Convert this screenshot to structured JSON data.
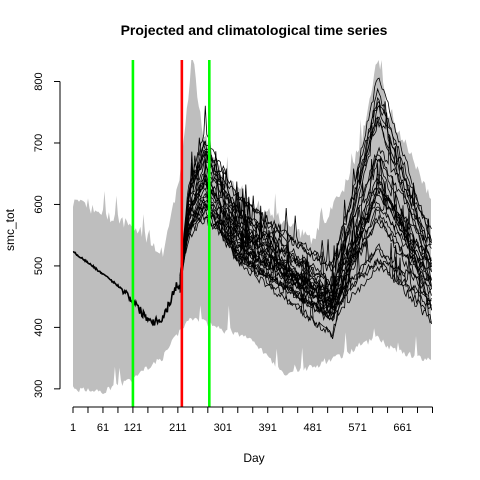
{
  "chart_data": {
    "type": "line",
    "title": "Projected and climatological time series",
    "xlabel": "Day",
    "ylabel": "smc_tot",
    "xlim": [
      1,
      720
    ],
    "ylim": [
      290,
      835
    ],
    "x_ticks": [
      1,
      31,
      61,
      91,
      121,
      151,
      181,
      211,
      241,
      271,
      301,
      331,
      361,
      391,
      421,
      451,
      481,
      511,
      541,
      571,
      601,
      631,
      661,
      691,
      721
    ],
    "x_tick_labels": [
      {
        "value": 1,
        "label": "1"
      },
      {
        "value": 61,
        "label": "61"
      },
      {
        "value": 121,
        "label": "121"
      },
      {
        "value": 211,
        "label": "211"
      },
      {
        "value": 301,
        "label": "301"
      },
      {
        "value": 391,
        "label": "391"
      },
      {
        "value": 481,
        "label": "481"
      },
      {
        "value": 571,
        "label": "571"
      },
      {
        "value": 661,
        "label": "661"
      }
    ],
    "y_ticks": [
      {
        "value": 300,
        "label": "300"
      },
      {
        "value": 400,
        "label": "400"
      },
      {
        "value": 500,
        "label": "500"
      },
      {
        "value": 600,
        "label": "600"
      },
      {
        "value": 700,
        "label": "700"
      },
      {
        "value": 800,
        "label": "800"
      }
    ],
    "grid": false,
    "climatology_band": {
      "color": "#bebebe",
      "x": [
        1,
        60,
        120,
        150,
        180,
        215,
        240,
        260,
        300,
        360,
        420,
        480,
        540,
        580,
        612,
        630,
        660,
        690,
        720
      ],
      "upper": [
        605,
        585,
        565,
        545,
        520,
        640,
        845,
        720,
        650,
        600,
        575,
        540,
        620,
        705,
        840,
        755,
        710,
        660,
        605
      ],
      "lower": [
        300,
        295,
        315,
        335,
        350,
        395,
        415,
        410,
        395,
        380,
        325,
        335,
        355,
        370,
        385,
        370,
        360,
        352,
        345
      ]
    },
    "observed": {
      "color": "#000000",
      "x": [
        1,
        20,
        40,
        60,
        80,
        100,
        120,
        135,
        150,
        165,
        180,
        195,
        205,
        215
      ],
      "y": [
        523,
        512,
        500,
        487,
        475,
        462,
        445,
        428,
        415,
        410,
        415,
        440,
        465,
        470
      ]
    },
    "ensemble_summary": {
      "color": "#000000",
      "start_day": 215,
      "end_day": 720,
      "members": 30,
      "peak_day": 265,
      "peak_range": [
        570,
        720
      ],
      "trough_day": 520,
      "trough_range": [
        375,
        510
      ],
      "second_peak_day": 612,
      "second_peak_range": [
        470,
        835
      ],
      "end_range": [
        365,
        605
      ]
    },
    "vertical_lines": [
      {
        "x": 121,
        "color": "#00ff00"
      },
      {
        "x": 219,
        "color": "#ff0000"
      },
      {
        "x": 274,
        "color": "#00ff00"
      }
    ]
  }
}
